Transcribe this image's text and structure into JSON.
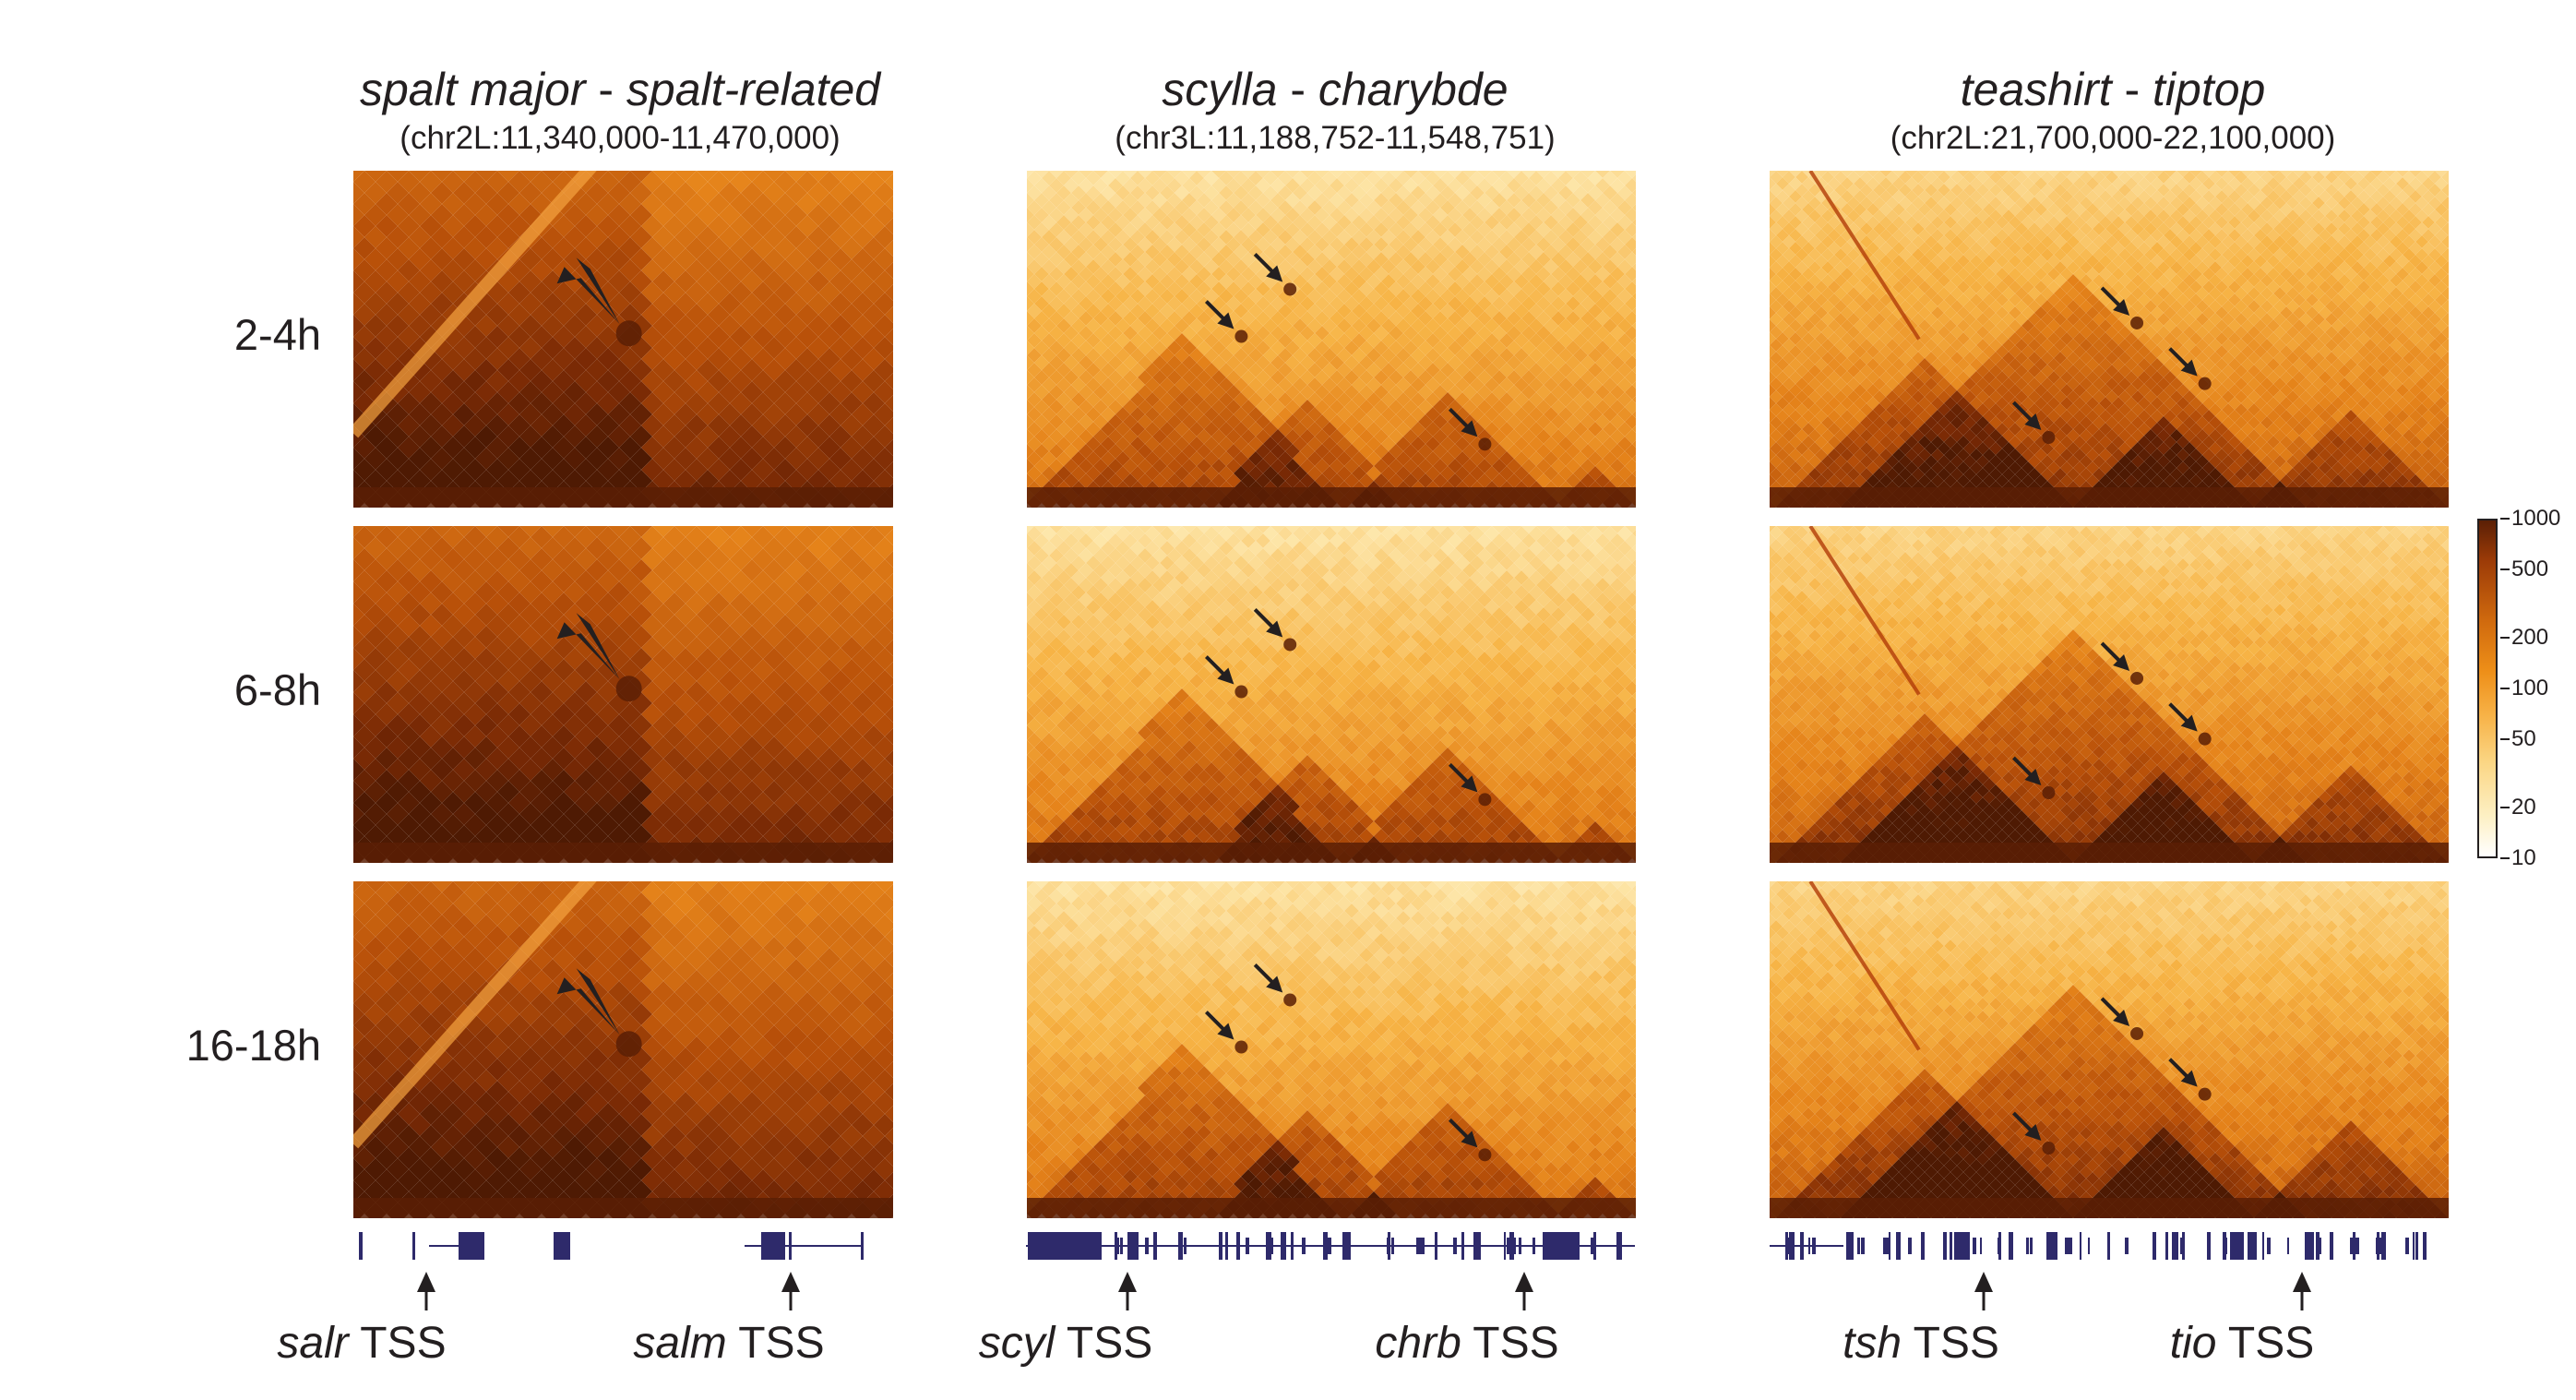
{
  "columns": [
    {
      "title_a": "spalt major",
      "title_sep": " - ",
      "title_b": "spalt-related",
      "coords": "(chr2L:11,340,000-11,470,000)",
      "tss": [
        {
          "gene": "salr",
          "suffix": " TSS"
        },
        {
          "gene": "salm",
          "suffix": " TSS"
        }
      ]
    },
    {
      "title_a": "scylla",
      "title_sep": " - ",
      "title_b": "charybde",
      "coords": "(chr3L:11,188,752-11,548,751)",
      "tss": [
        {
          "gene": "scyl",
          "suffix": " TSS"
        },
        {
          "gene": "chrb",
          "suffix": " TSS"
        }
      ]
    },
    {
      "title_a": "teashirt",
      "title_sep": " - ",
      "title_b": "tiptop",
      "coords": "(chr2L:21,700,000-22,100,000)",
      "tss": [
        {
          "gene": "tsh",
          "suffix": " TSS"
        },
        {
          "gene": "tio",
          "suffix": " TSS"
        }
      ]
    }
  ],
  "rows": [
    {
      "label": "2-4h"
    },
    {
      "label": "6-8h"
    },
    {
      "label": "16-18h"
    }
  ],
  "legend": {
    "ticks": [
      "1000",
      "500",
      "200",
      "100",
      "50",
      "20",
      "10"
    ],
    "tick_values": [
      1000,
      500,
      200,
      100,
      50,
      20,
      10
    ],
    "range": [
      10,
      1000
    ],
    "scale": "log"
  },
  "colors": {
    "darkest": "#5a1f05",
    "dark": "#9c3b07",
    "mid": "#e07c12",
    "light": "#f9c46a",
    "lightest": "#fff9e6",
    "gene": "#2e2a6b",
    "arrow": "#231f20"
  }
}
